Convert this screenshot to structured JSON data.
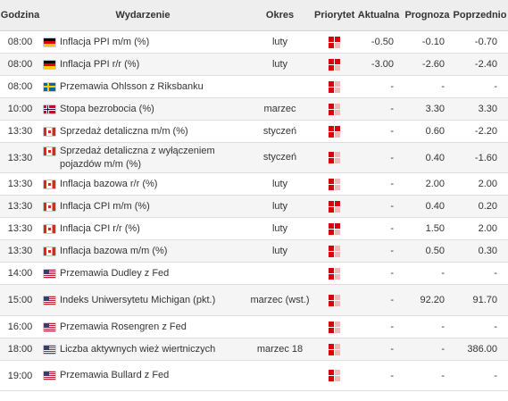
{
  "headers": {
    "time": "Godzina",
    "event": "Wydarzenie",
    "period": "Okres",
    "priority": "Priorytet",
    "actual": "Aktualna",
    "forecast": "Prognoza",
    "previous": "Poprzednio"
  },
  "colors": {
    "priority_on": "#d8000f",
    "priority_off": "#f2b6b6",
    "header_bg": "#eeeeee"
  },
  "rows": [
    {
      "time": "08:00",
      "flag": "germany-flag-icon",
      "event": "Inflacja PPI m/m (%)",
      "period": "luty",
      "priority": 3,
      "actual": "-0.50",
      "forecast": "-0.10",
      "previous": "-0.70"
    },
    {
      "time": "08:00",
      "flag": "germany-flag-icon",
      "event": "Inflacja PPI r/r (%)",
      "period": "luty",
      "priority": 3,
      "actual": "-3.00",
      "forecast": "-2.60",
      "previous": "-2.40"
    },
    {
      "time": "08:00",
      "flag": "sweden-flag-icon",
      "event": "Przemawia Ohlsson z Riksbanku",
      "period": "",
      "priority": 2,
      "actual": "-",
      "forecast": "-",
      "previous": "-"
    },
    {
      "time": "10:00",
      "flag": "norway-flag-icon",
      "event": "Stopa bezrobocia (%)",
      "period": "marzec",
      "priority": 2,
      "actual": "-",
      "forecast": "3.30",
      "previous": "3.30"
    },
    {
      "time": "13:30",
      "flag": "canada-flag-icon",
      "event": "Sprzedaż detaliczna m/m (%)",
      "period": "styczeń",
      "priority": 3,
      "actual": "-",
      "forecast": "0.60",
      "previous": "-2.20"
    },
    {
      "time": "13:30",
      "flag": "canada-flag-icon",
      "event": "Sprzedaż detaliczna z wyłączeniem pojazdów m/m (%)",
      "period": "styczeń",
      "priority": 2,
      "actual": "-",
      "forecast": "0.40",
      "previous": "-1.60"
    },
    {
      "time": "13:30",
      "flag": "canada-flag-icon",
      "event": "Inflacja bazowa r/r (%)",
      "period": "luty",
      "priority": 2,
      "actual": "-",
      "forecast": "2.00",
      "previous": "2.00"
    },
    {
      "time": "13:30",
      "flag": "canada-flag-icon",
      "event": "Inflacja CPI m/m (%)",
      "period": "luty",
      "priority": 3,
      "actual": "-",
      "forecast": "0.40",
      "previous": "0.20"
    },
    {
      "time": "13:30",
      "flag": "canada-flag-icon",
      "event": "Inflacja CPI r/r (%)",
      "period": "luty",
      "priority": 3,
      "actual": "-",
      "forecast": "1.50",
      "previous": "2.00"
    },
    {
      "time": "13:30",
      "flag": "canada-flag-icon",
      "event": "Inflacja bazowa m/m (%)",
      "period": "luty",
      "priority": 2,
      "actual": "-",
      "forecast": "0.50",
      "previous": "0.30"
    },
    {
      "time": "14:00",
      "flag": "usa-flag-icon",
      "event": "Przemawia Dudley z Fed",
      "period": "",
      "priority": 2,
      "actual": "-",
      "forecast": "-",
      "previous": "-"
    },
    {
      "time": "15:00",
      "flag": "usa-flag-icon",
      "event": "Indeks Uniwersytetu Michigan (pkt.)",
      "period": "marzec (wst.)",
      "priority": 2,
      "actual": "-",
      "forecast": "92.20",
      "previous": "91.70"
    },
    {
      "time": "16:00",
      "flag": "usa-flag-icon",
      "event": "Przemawia Rosengren z Fed",
      "period": "",
      "priority": 2,
      "actual": "-",
      "forecast": "-",
      "previous": "-"
    },
    {
      "time": "18:00",
      "flag": "usa-flag-icon",
      "event": "Liczba aktywnych wież wiertniczych",
      "period": "marzec 18",
      "priority": 2,
      "actual": "-",
      "forecast": "-",
      "previous": "386.00"
    },
    {
      "time": "19:00",
      "flag": "usa-flag-icon",
      "event": "Przemawia Bullard z Fed",
      "period": "",
      "priority": 2,
      "actual": "-",
      "forecast": "-",
      "previous": "-"
    }
  ]
}
